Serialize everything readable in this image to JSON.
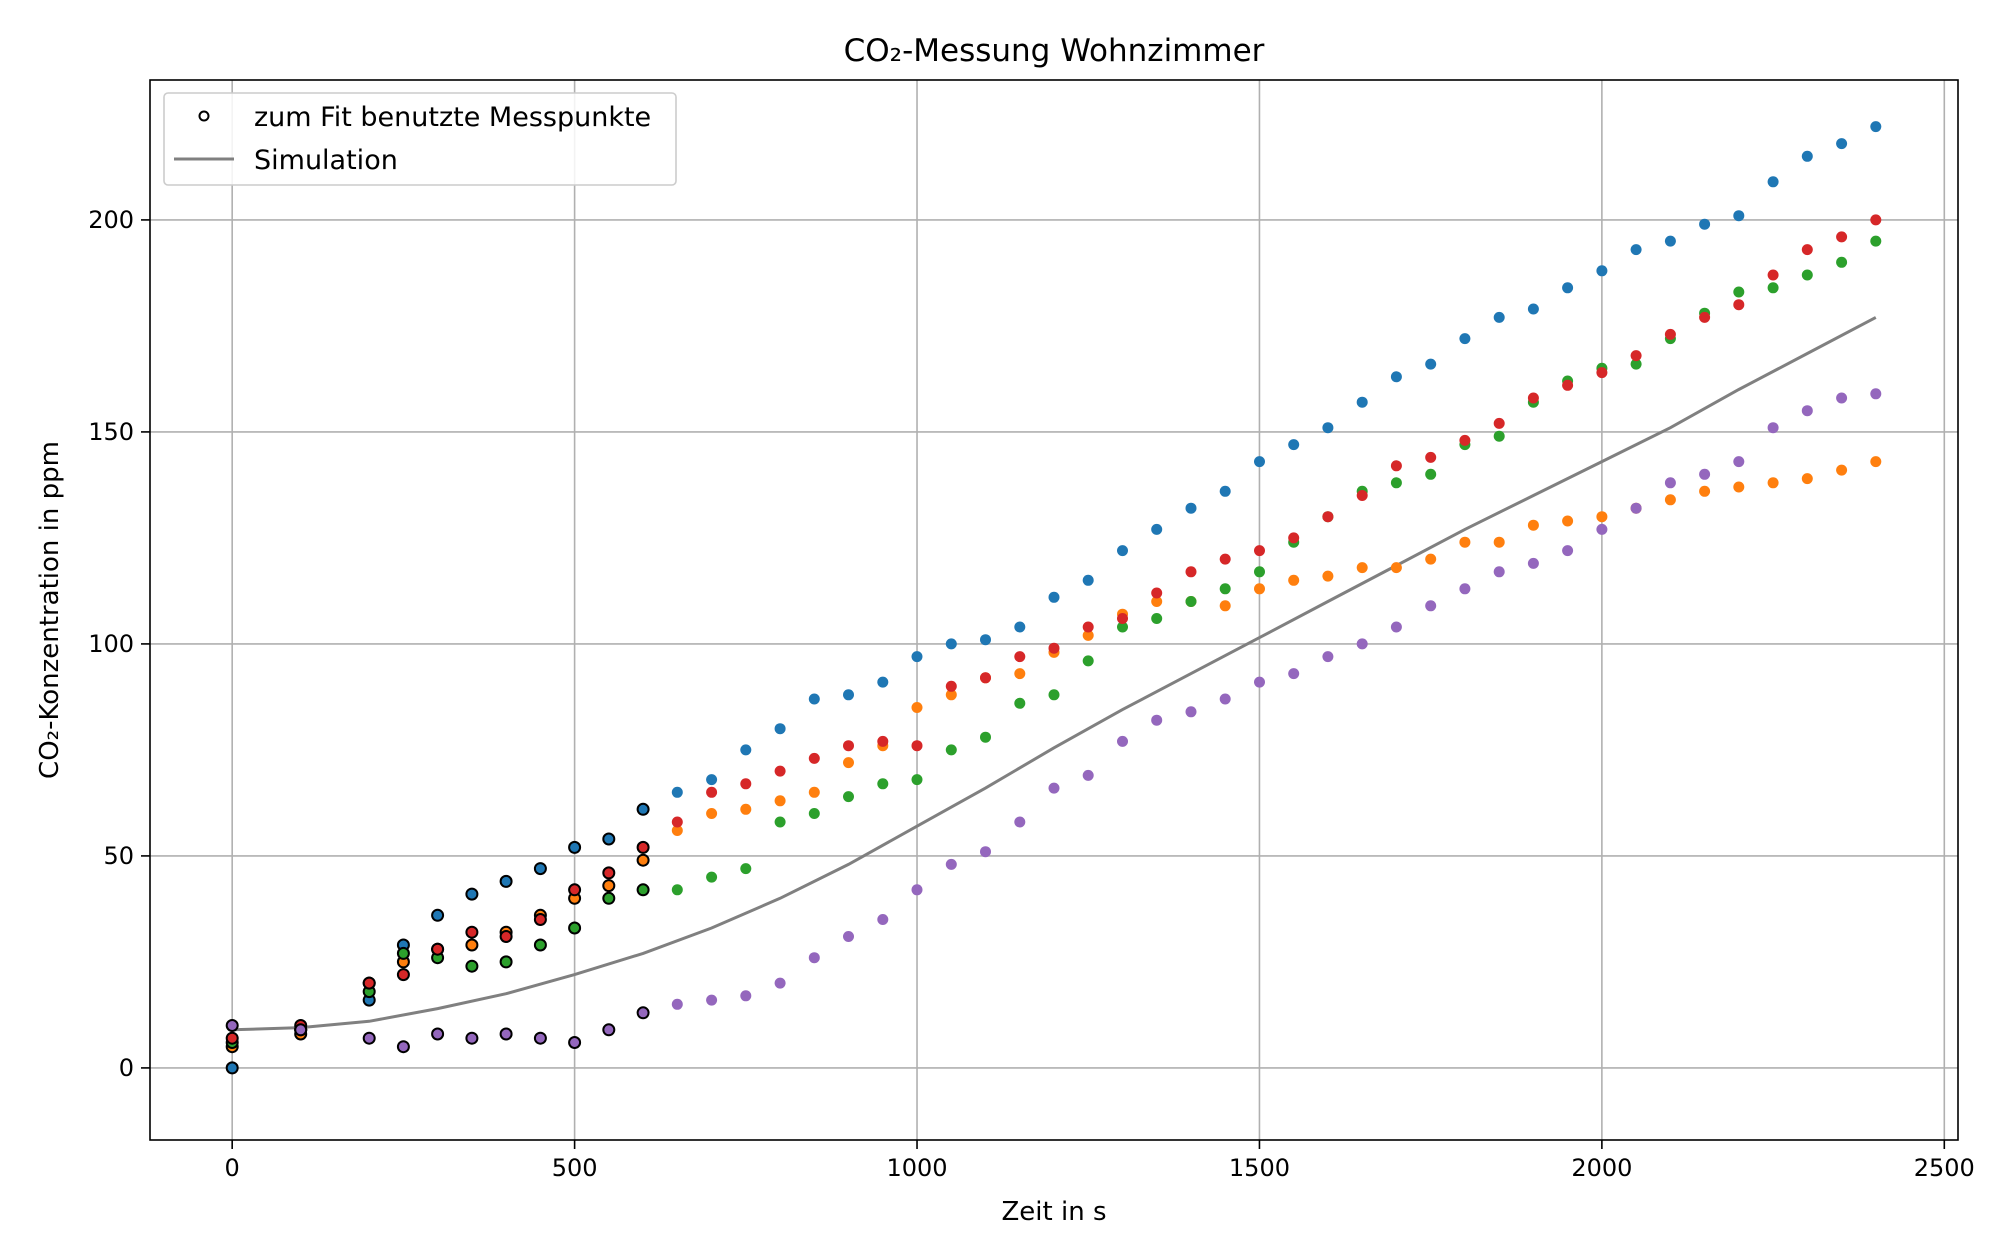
{
  "chart_data": {
    "type": "scatter",
    "title": "CO₂-Messung Wohnzimmer",
    "xlabel": "Zeit in s",
    "ylabel": "CO₂-Konzentration in ppm",
    "xlim": [
      -120,
      2520
    ],
    "ylim": [
      -17,
      233
    ],
    "xticks": [
      0,
      500,
      1000,
      1500,
      2000,
      2500
    ],
    "yticks": [
      0,
      50,
      100,
      150,
      200
    ],
    "grid": true,
    "legend_position": "top-left",
    "legend": [
      "zum Fit benutzte Messpunkte",
      "Simulation"
    ],
    "fit_range_end": 600,
    "series": [
      {
        "color": "#1f77b4",
        "x": [
          0,
          100,
          200,
          250,
          300,
          350,
          400,
          450,
          500,
          550,
          600,
          650,
          700,
          750,
          800,
          850,
          900,
          950,
          1000,
          1050,
          1100,
          1150,
          1200,
          1250,
          1300,
          1350,
          1400,
          1450,
          1500,
          1550,
          1600,
          1650,
          1700,
          1750,
          1800,
          1850,
          1900,
          1950,
          2000,
          2050,
          2100,
          2150,
          2200,
          2250,
          2300,
          2350,
          2400
        ],
        "y": [
          0,
          9,
          16,
          29,
          36,
          41,
          44,
          47,
          52,
          54,
          61,
          65,
          68,
          75,
          80,
          87,
          88,
          91,
          97,
          100,
          101,
          104,
          111,
          115,
          122,
          127,
          132,
          136,
          143,
          147,
          151,
          157,
          163,
          166,
          172,
          177,
          179,
          184,
          188,
          193,
          195,
          199,
          201,
          209,
          215,
          218,
          222
        ]
      },
      {
        "color": "#ff7f0e",
        "x": [
          0,
          100,
          200,
          250,
          300,
          350,
          400,
          450,
          500,
          550,
          600,
          650,
          700,
          750,
          800,
          850,
          900,
          950,
          1000,
          1050,
          1100,
          1150,
          1200,
          1250,
          1300,
          1350,
          1400,
          1450,
          1500,
          1550,
          1600,
          1650,
          1700,
          1750,
          1800,
          1850,
          1900,
          1950,
          2000,
          2050,
          2100,
          2150,
          2200,
          2250,
          2300,
          2350,
          2400
        ],
        "y": [
          5,
          8,
          20,
          25,
          28,
          29,
          32,
          36,
          40,
          43,
          49,
          56,
          60,
          61,
          63,
          65,
          72,
          76,
          85,
          88,
          92,
          93,
          98,
          102,
          107,
          110,
          110,
          109,
          113,
          115,
          116,
          118,
          118,
          120,
          124,
          124,
          128,
          129,
          130,
          132,
          134,
          136,
          137,
          138,
          139,
          141,
          143
        ]
      },
      {
        "color": "#2ca02c",
        "x": [
          0,
          100,
          200,
          250,
          300,
          350,
          400,
          450,
          500,
          550,
          600,
          650,
          700,
          750,
          800,
          850,
          900,
          950,
          1000,
          1050,
          1100,
          1150,
          1200,
          1250,
          1300,
          1350,
          1400,
          1450,
          1500,
          1550,
          1600,
          1650,
          1700,
          1750,
          1800,
          1850,
          1900,
          1950,
          2000,
          2050,
          2100,
          2150,
          2200,
          2250,
          2300,
          2350,
          2400
        ],
        "y": [
          6,
          9,
          18,
          27,
          26,
          24,
          25,
          29,
          33,
          40,
          42,
          42,
          45,
          47,
          58,
          60,
          64,
          67,
          68,
          75,
          78,
          86,
          88,
          96,
          104,
          106,
          110,
          113,
          117,
          124,
          130,
          136,
          138,
          140,
          147,
          149,
          157,
          162,
          165,
          166,
          172,
          178,
          183,
          184,
          187,
          190,
          195
        ]
      },
      {
        "color": "#d62728",
        "x": [
          0,
          100,
          200,
          250,
          300,
          350,
          400,
          450,
          500,
          550,
          600,
          650,
          700,
          750,
          800,
          850,
          900,
          950,
          1000,
          1050,
          1100,
          1150,
          1200,
          1250,
          1300,
          1350,
          1400,
          1450,
          1500,
          1550,
          1600,
          1650,
          1700,
          1750,
          1800,
          1850,
          1900,
          1950,
          2000,
          2050,
          2100,
          2150,
          2200,
          2250,
          2300,
          2350,
          2400
        ],
        "y": [
          7,
          10,
          20,
          22,
          28,
          32,
          31,
          35,
          42,
          46,
          52,
          58,
          65,
          67,
          70,
          73,
          76,
          77,
          76,
          90,
          92,
          97,
          99,
          104,
          106,
          112,
          117,
          120,
          122,
          125,
          130,
          135,
          142,
          144,
          148,
          152,
          158,
          161,
          164,
          168,
          173,
          177,
          180,
          187,
          193,
          196,
          200
        ]
      },
      {
        "color": "#9467bd",
        "x": [
          0,
          100,
          200,
          250,
          300,
          350,
          400,
          450,
          500,
          550,
          600,
          650,
          700,
          750,
          800,
          850,
          900,
          950,
          1000,
          1050,
          1100,
          1150,
          1200,
          1250,
          1300,
          1350,
          1400,
          1450,
          1500,
          1550,
          1600,
          1650,
          1700,
          1750,
          1800,
          1850,
          1900,
          1950,
          2000,
          2050,
          2100,
          2150,
          2200,
          2250,
          2300,
          2350,
          2400
        ],
        "y": [
          10,
          9,
          7,
          5,
          8,
          7,
          8,
          7,
          6,
          9,
          13,
          15,
          16,
          17,
          20,
          26,
          31,
          35,
          42,
          48,
          51,
          58,
          66,
          69,
          77,
          82,
          84,
          87,
          91,
          93,
          97,
          100,
          104,
          109,
          113,
          117,
          119,
          122,
          127,
          132,
          138,
          140,
          143,
          151,
          155,
          158,
          159
        ]
      }
    ],
    "simulation": {
      "name": "Simulation",
      "color": "#808080",
      "x": [
        0,
        100,
        200,
        300,
        400,
        500,
        600,
        700,
        800,
        900,
        1000,
        1100,
        1200,
        1300,
        1400,
        1500,
        1600,
        1700,
        1800,
        1900,
        2000,
        2100,
        2200,
        2300,
        2400
      ],
      "y": [
        9,
        9.5,
        11,
        14,
        17.5,
        22,
        27,
        33,
        40,
        48,
        57,
        66,
        75.5,
        84.5,
        93,
        101.5,
        110,
        118.5,
        127,
        135,
        143,
        151,
        160,
        168.5,
        177
      ]
    }
  }
}
